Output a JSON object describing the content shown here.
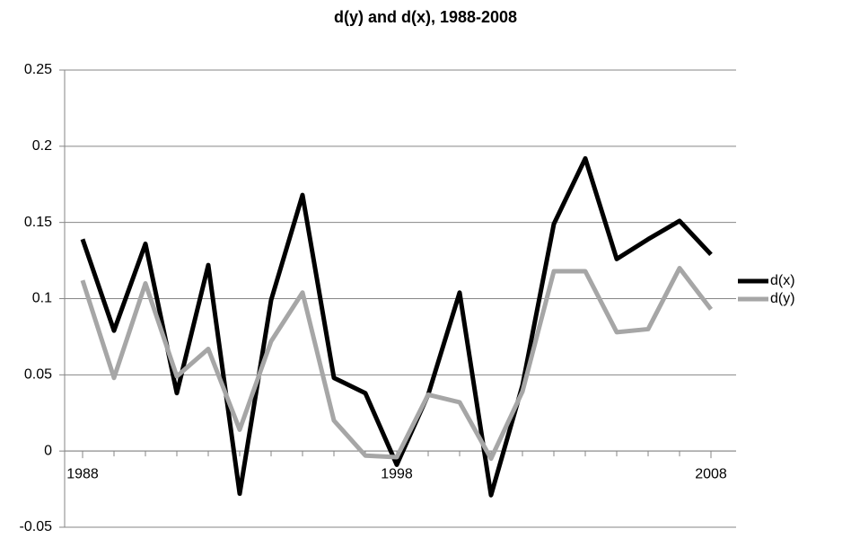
{
  "chart_data": {
    "type": "line",
    "title": "d(y) and d(x), 1988-2008",
    "x": [
      1988,
      1989,
      1990,
      1991,
      1992,
      1993,
      1994,
      1995,
      1996,
      1997,
      1998,
      1999,
      2000,
      2001,
      2002,
      2003,
      2004,
      2005,
      2006,
      2007,
      2008
    ],
    "xlim": [
      1988,
      2008
    ],
    "xticks": [
      1988,
      1998,
      2008
    ],
    "ylim": [
      -0.05,
      0.25
    ],
    "yticks": [
      0.25,
      0.2,
      0.15,
      0.1,
      0.05,
      0,
      -0.05
    ],
    "grid": true,
    "legend": "right",
    "series": [
      {
        "name": "d(x)",
        "color": "#000000",
        "values": [
          0.139,
          0.079,
          0.136,
          0.038,
          0.122,
          -0.028,
          0.099,
          0.168,
          0.048,
          0.038,
          -0.009,
          0.037,
          0.104,
          -0.029,
          0.043,
          0.149,
          0.192,
          0.126,
          0.139,
          0.151,
          0.129
        ]
      },
      {
        "name": "d(y)",
        "color": "#a6a6a6",
        "values": [
          0.112,
          0.048,
          0.11,
          0.049,
          0.067,
          0.014,
          0.072,
          0.104,
          0.02,
          -0.003,
          -0.004,
          0.037,
          0.032,
          -0.005,
          0.039,
          0.118,
          0.118,
          0.078,
          0.08,
          0.12,
          0.093
        ]
      }
    ]
  }
}
